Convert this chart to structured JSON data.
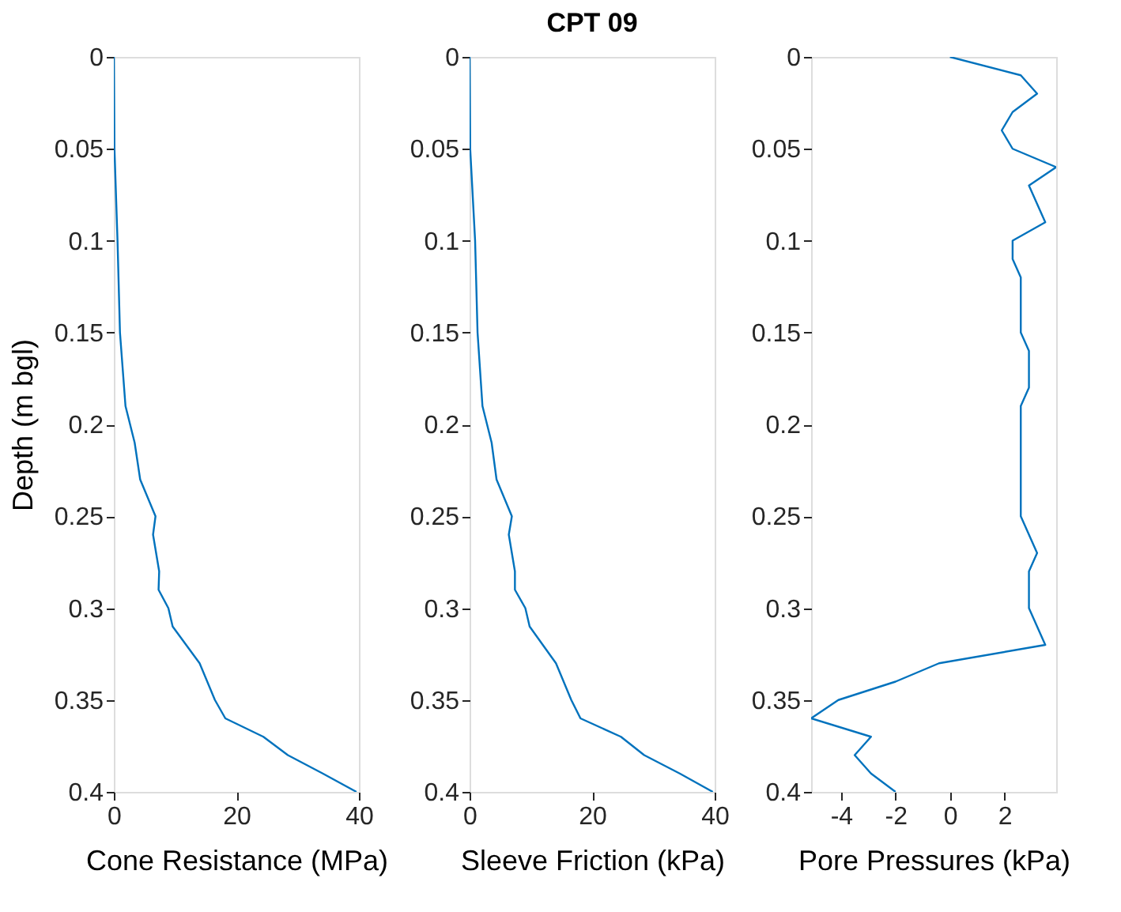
{
  "chart_data": [
    {
      "type": "line",
      "xlabel": "Cone Resistance (MPa)",
      "ylabel": "Depth (m bgl)",
      "xlim": [
        0,
        40
      ],
      "xticks": [
        0,
        20,
        40
      ],
      "ylim": [
        0.4,
        0
      ],
      "yticks": [
        0,
        0.05,
        0.1,
        0.15,
        0.2,
        0.25,
        0.3,
        0.35,
        0.4
      ],
      "series": [
        {
          "color": "#0072bd",
          "x": [
            0,
            0.1,
            0.6,
            1.0,
            1.9,
            3.4,
            4.3,
            6.8,
            6.4,
            7.4,
            7.3,
            8.9,
            9.6,
            14.0,
            16.5,
            18.2,
            24.4,
            28.4,
            34.1,
            39.6
          ],
          "values": [
            0,
            0.05,
            0.1,
            0.15,
            0.19,
            0.21,
            0.23,
            0.25,
            0.26,
            0.28,
            0.29,
            0.3,
            0.31,
            0.33,
            0.35,
            0.36,
            0.37,
            0.38,
            0.39,
            0.4
          ]
        }
      ]
    },
    {
      "type": "line",
      "title": "CPT 09",
      "xlabel": "Sleeve Friction (kPa)",
      "xlim": [
        0,
        40
      ],
      "xticks": [
        0,
        20,
        40
      ],
      "ylim": [
        0.4,
        0
      ],
      "yticks": [
        0,
        0.05,
        0.1,
        0.15,
        0.2,
        0.25,
        0.3,
        0.35,
        0.4
      ],
      "series": [
        {
          "color": "#0072bd",
          "x": [
            0,
            0.1,
            0.9,
            1.3,
            2.1,
            3.6,
            4.4,
            6.9,
            6.4,
            7.4,
            7.4,
            9.1,
            9.8,
            14.1,
            16.6,
            18.1,
            24.7,
            28.5,
            34.3,
            39.7
          ],
          "values": [
            0,
            0.05,
            0.1,
            0.15,
            0.19,
            0.21,
            0.23,
            0.25,
            0.26,
            0.28,
            0.29,
            0.3,
            0.31,
            0.33,
            0.35,
            0.36,
            0.37,
            0.38,
            0.39,
            0.4
          ]
        }
      ]
    },
    {
      "type": "line",
      "xlabel": "Pore Pressures (kPa)",
      "xlim": [
        -5.1,
        3.9
      ],
      "xticks": [
        -4,
        -2,
        0,
        2
      ],
      "ylim": [
        0.4,
        0
      ],
      "yticks": [
        0,
        0.05,
        0.1,
        0.15,
        0.2,
        0.25,
        0.3,
        0.35,
        0.4
      ],
      "series": [
        {
          "color": "#0072bd",
          "x": [
            0,
            2.6,
            3.2,
            2.3,
            1.9,
            2.3,
            3.9,
            2.9,
            3.5,
            2.3,
            2.3,
            2.6,
            2.6,
            2.9,
            2.9,
            2.6,
            2.6,
            3.2,
            2.9,
            2.9,
            3.5,
            -0.4,
            -2.0,
            -4.1,
            -5.1,
            -2.9,
            -3.5,
            -2.9,
            -2.0
          ],
          "values": [
            0,
            0.01,
            0.02,
            0.03,
            0.04,
            0.05,
            0.06,
            0.07,
            0.09,
            0.1,
            0.11,
            0.12,
            0.15,
            0.16,
            0.18,
            0.19,
            0.25,
            0.27,
            0.28,
            0.3,
            0.32,
            0.33,
            0.34,
            0.35,
            0.36,
            0.37,
            0.38,
            0.39,
            0.4
          ]
        }
      ]
    }
  ]
}
